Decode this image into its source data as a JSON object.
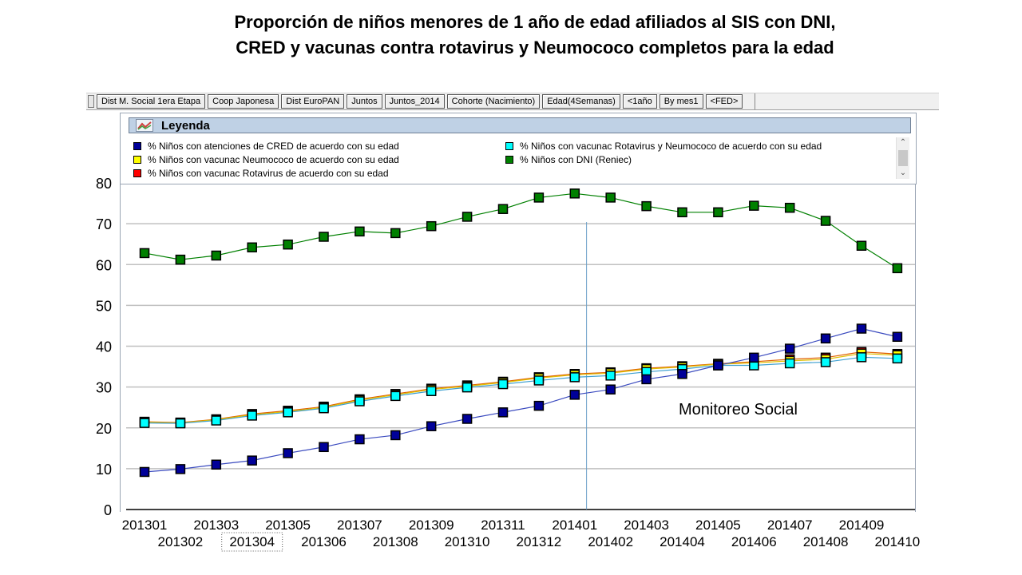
{
  "title": {
    "line1": "Proporción de niños menores de 1 año de edad afiliados al SIS con DNI,",
    "line2": "CRED y vacunas contra rotavirus y Neumococo completos para la edad"
  },
  "toolbar": {
    "buttons": [
      "Dist M. Social 1era Etapa",
      "Coop Japonesa",
      "Dist EuroPAN",
      "Juntos",
      "Juntos_2014",
      "Cohorte (Nacimiento)",
      "Edad(4Semanas)",
      "<1año",
      "By mes1",
      "<FED>"
    ]
  },
  "legend": {
    "title": "Leyenda",
    "icon": "chart-line-icon",
    "scroll_up_icon": "chevron-up-icon",
    "scroll_down_icon": "chevron-down-icon",
    "items": [
      {
        "label": "% Niños  con atenciones de CRED de acuerdo con su edad",
        "color": "#000099"
      },
      {
        "label": "% Niños con vacunac Rotavirus y Neumococo de acuerdo con su edad",
        "color": "#00ffff"
      },
      {
        "label": "% Niños con vacunac Neumococo de acuerdo con su edad",
        "color": "#ffff00"
      },
      {
        "label": "% Niños con DNI (Reniec)",
        "color": "#008000"
      },
      {
        "label": "% Niños con vacunac Rotavirus de acuerdo con su edad",
        "color": "#ff0000"
      }
    ]
  },
  "annotation": "Monitoreo Social",
  "chart_data": {
    "type": "line",
    "x": [
      "201301",
      "201302",
      "201303",
      "201304",
      "201305",
      "201306",
      "201307",
      "201308",
      "201309",
      "201310",
      "201311",
      "201312",
      "201401",
      "201402",
      "201403",
      "201404",
      "201405",
      "201406",
      "201407",
      "201408",
      "201409",
      "201410"
    ],
    "ylim": [
      0,
      80
    ],
    "yticks": [
      0,
      10,
      20,
      30,
      40,
      50,
      60,
      70,
      80
    ],
    "grid": true,
    "legend_position": "top",
    "vertical_marker_x": "201401",
    "selected_x_label": "201304",
    "series": [
      {
        "name": "% Niños con DNI (Reniec)",
        "color": "#008000",
        "line_color": "#008000",
        "values": [
          62.8,
          61.2,
          62.2,
          64.2,
          64.9,
          66.8,
          68.1,
          67.7,
          69.4,
          71.7,
          73.6,
          76.4,
          77.4,
          76.4,
          74.3,
          72.8,
          72.8,
          74.4,
          73.9,
          70.7,
          64.6,
          59.1
        ]
      },
      {
        "name": "% Niños con vacunac Rotavirus de acuerdo con su edad",
        "color": "#ff0000",
        "line_color": "#e06000",
        "values": [
          21.5,
          21.3,
          22.1,
          23.4,
          24.2,
          25.2,
          27.0,
          28.3,
          29.6,
          30.4,
          31.3,
          32.4,
          33.2,
          33.6,
          34.6,
          35.1,
          35.7,
          36.2,
          36.8,
          37.2,
          38.6,
          38.1
        ]
      },
      {
        "name": "% Niños con vacunac Neumococo de acuerdo con su edad",
        "color": "#ffff00",
        "line_color": "#e0c000",
        "values": [
          21.4,
          21.2,
          22.0,
          23.2,
          24.0,
          25.0,
          26.8,
          28.1,
          29.4,
          30.2,
          31.1,
          32.2,
          33.0,
          33.4,
          34.4,
          34.9,
          35.6,
          35.9,
          36.4,
          36.8,
          38.2,
          37.8
        ]
      },
      {
        "name": "% Niños con vacunac Rotavirus y Neumococo de acuerdo con su edad",
        "color": "#00ffff",
        "line_color": "#3fa0d0",
        "values": [
          21.2,
          21.1,
          21.8,
          23.0,
          23.8,
          24.8,
          26.5,
          27.8,
          29.0,
          29.9,
          30.7,
          31.6,
          32.4,
          32.8,
          33.7,
          34.4,
          35.3,
          35.3,
          35.8,
          36.1,
          37.3,
          37.0
        ]
      },
      {
        "name": "% Niños  con atenciones de CRED de acuerdo con su edad",
        "color": "#000099",
        "line_color": "#3a4abf",
        "values": [
          9.2,
          9.9,
          11.0,
          12.0,
          13.8,
          15.3,
          17.2,
          18.2,
          20.4,
          22.2,
          23.8,
          25.4,
          28.1,
          29.4,
          31.9,
          33.2,
          35.3,
          37.2,
          39.4,
          41.9,
          44.3,
          42.3
        ]
      }
    ]
  }
}
